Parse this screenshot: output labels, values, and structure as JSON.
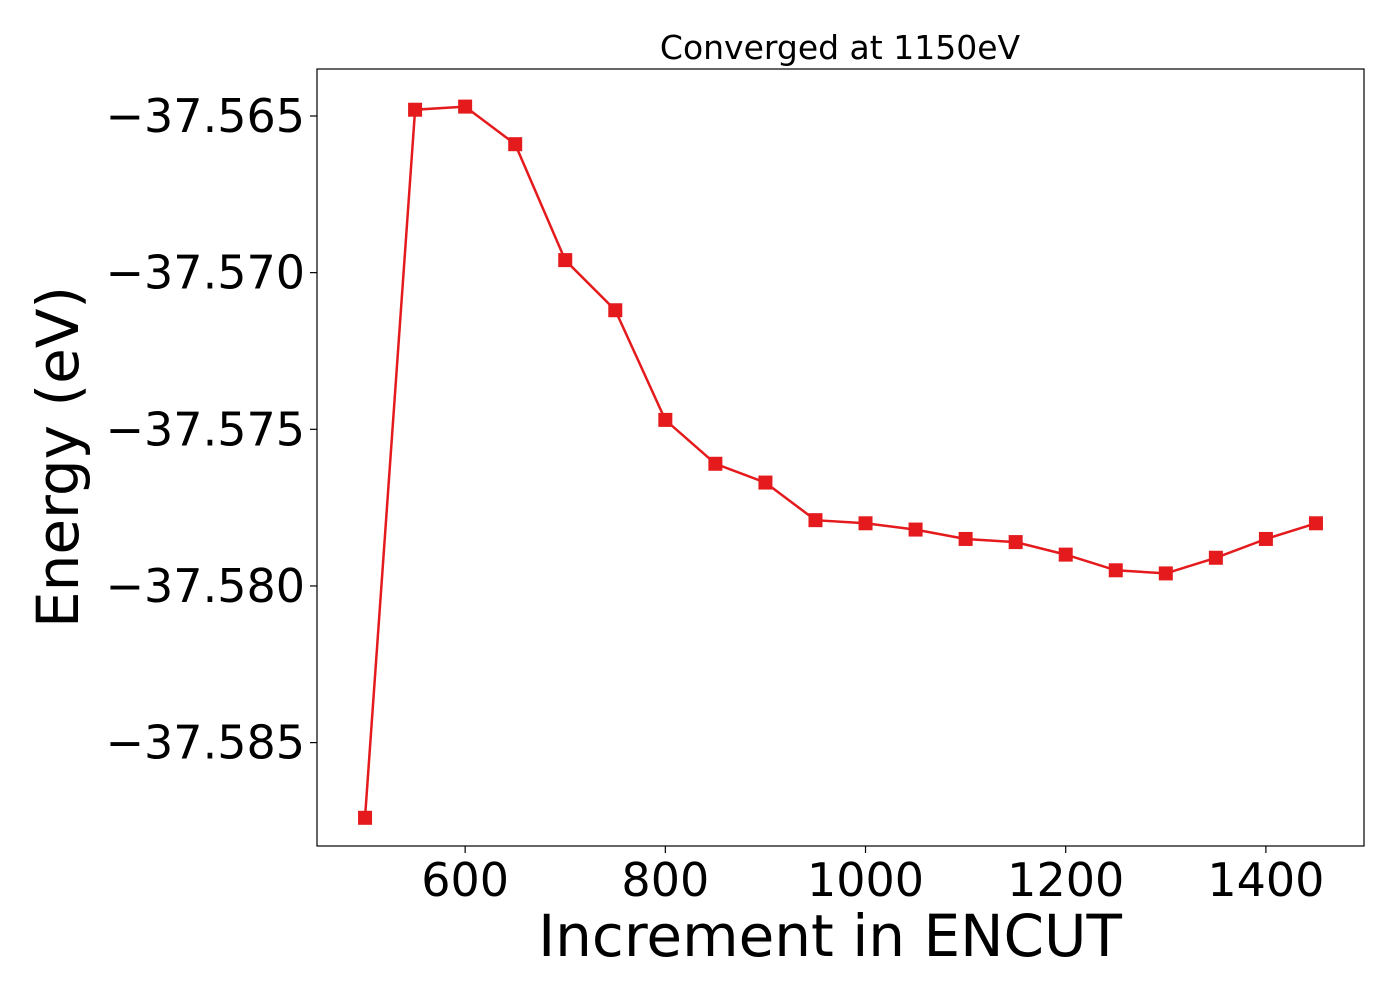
{
  "chart_data": {
    "type": "line",
    "title": "Converged at 1150eV",
    "xlabel": "Increment in ENCUT",
    "ylabel": "Energy (eV)",
    "xlim": [
      452,
      1498
    ],
    "ylim": [
      -37.5883,
      -37.5635
    ],
    "xticks": [
      600,
      800,
      1000,
      1200,
      1400
    ],
    "xtick_labels": [
      "600",
      "800",
      "1000",
      "1200",
      "1400"
    ],
    "yticks": [
      -37.565,
      -37.57,
      -37.575,
      -37.58,
      -37.585
    ],
    "ytick_labels": [
      "−37.565",
      "−37.570",
      "−37.575",
      "−37.580",
      "−37.585"
    ],
    "grid": false,
    "legend": "none",
    "series": [
      {
        "color": "#e41a1c",
        "marker": "square",
        "x": [
          500,
          550,
          600,
          650,
          700,
          750,
          800,
          850,
          900,
          950,
          1000,
          1050,
          1100,
          1150,
          1200,
          1250,
          1300,
          1350,
          1400,
          1450
        ],
        "y": [
          -37.5874,
          -37.5648,
          -37.5647,
          -37.5659,
          -37.5696,
          -37.5712,
          -37.5747,
          -37.5761,
          -37.5767,
          -37.5779,
          -37.578,
          -37.5782,
          -37.5785,
          -37.5786,
          -37.579,
          -37.5795,
          -37.5796,
          -37.5791,
          -37.5785,
          -37.578
        ]
      }
    ]
  }
}
